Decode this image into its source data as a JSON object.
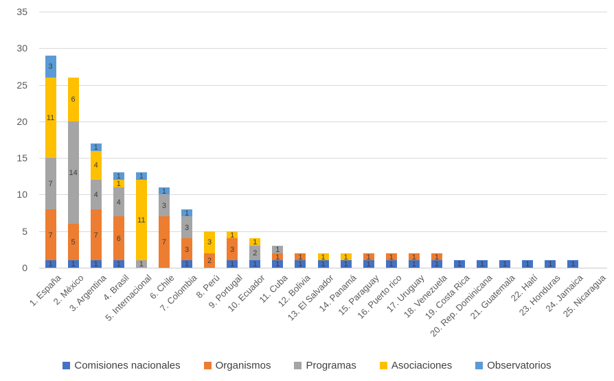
{
  "chart_data": {
    "type": "bar",
    "stacked": true,
    "title": "",
    "categories": [
      "1. España",
      "2. México",
      "3. Argentina",
      "4. Brasil",
      "5. Internacional",
      "6. Chile",
      "7. Colombia",
      "8. Perú",
      "9. Portugal",
      "10. Ecuador",
      "11. Cuba",
      "12. Bolivia",
      "13. El Salvador",
      "14. Panamá",
      "15. Paraguay",
      "16. Puerto rico",
      "17. Uruguay",
      "18. Venezuela",
      "19. Costa Rica",
      "20. Rep. Dominicana",
      "21. Guatemala",
      "22. Haití",
      "23. Honduras",
      "24. Jamaica",
      "25. Nicaragua"
    ],
    "series": [
      {
        "name": "Comisiones nacionales",
        "color": "#4472C4",
        "values": [
          1,
          1,
          1,
          1,
          0,
          0,
          1,
          0,
          1,
          1,
          1,
          1,
          1,
          1,
          1,
          1,
          1,
          1,
          1,
          1,
          1,
          1,
          1,
          1,
          0
        ]
      },
      {
        "name": "Organismos",
        "color": "#ED7D31",
        "values": [
          7,
          5,
          7,
          6,
          0,
          7,
          3,
          2,
          3,
          0,
          1,
          1,
          0,
          0,
          1,
          1,
          1,
          1,
          0,
          0,
          0,
          0,
          0,
          0,
          0
        ]
      },
      {
        "name": "Programas",
        "color": "#A5A5A5",
        "values": [
          7,
          14,
          4,
          4,
          1,
          3,
          3,
          0,
          0,
          2,
          1,
          0,
          0,
          0,
          0,
          0,
          0,
          0,
          0,
          0,
          0,
          0,
          0,
          0,
          0
        ]
      },
      {
        "name": "Asociaciones",
        "color": "#FFC000",
        "values": [
          11,
          6,
          4,
          1,
          11,
          0,
          0,
          3,
          1,
          1,
          0,
          0,
          1,
          1,
          0,
          0,
          0,
          0,
          0,
          0,
          0,
          0,
          0,
          0,
          0
        ]
      },
      {
        "name": "Observatorios",
        "color": "#5B9BD5",
        "values": [
          3,
          0,
          1,
          1,
          1,
          1,
          1,
          0,
          0,
          0,
          0,
          0,
          0,
          0,
          0,
          0,
          0,
          0,
          0,
          0,
          0,
          0,
          0,
          0,
          0
        ]
      }
    ],
    "totals": [
      29,
      26,
      17,
      13,
      13,
      11,
      8,
      5,
      5,
      4,
      3,
      2,
      2,
      2,
      2,
      2,
      2,
      2,
      1,
      1,
      1,
      1,
      1,
      1,
      0
    ],
    "xlabel": "",
    "ylabel": "",
    "ylim": [
      0,
      35
    ],
    "y_ticks": [
      0,
      5,
      10,
      15,
      20,
      25,
      30,
      35
    ],
    "grid": true,
    "data_labels": true,
    "legend_position": "bottom"
  },
  "colors": {
    "background": "#FFFFFF",
    "gridline": "#D9D9D9",
    "axis_text": "#595959",
    "data_label_text": "#3C3C3C",
    "legend_text": "#404040"
  }
}
